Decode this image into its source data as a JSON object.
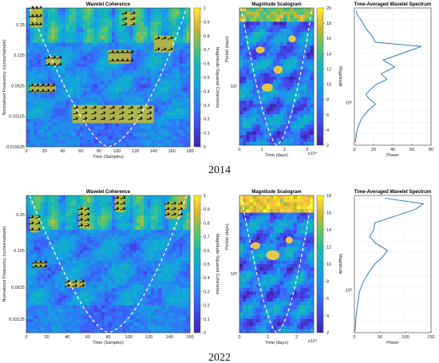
{
  "chart_data": [
    {
      "panel": "top",
      "year_label": "2014",
      "coherence": {
        "type": "heatmap",
        "title": "Wavelet Coherence",
        "xlabel": "Time (Samples)",
        "ylabel": "Normalized Frequency  (cycles/sample)",
        "xticks": [
          "0",
          "20",
          "40",
          "60",
          "80",
          "100",
          "120",
          "140",
          "160",
          "180"
        ],
        "yticks": [
          "0.25",
          "0.125",
          "0.0625",
          "0.03125",
          "0.015625"
        ],
        "colorbar_label": "Magnitude-Squared Coherence",
        "colorbar_ticks": [
          "0",
          "0.1",
          "0.2",
          "0.3",
          "0.4",
          "0.5",
          "0.6",
          "0.7",
          "0.8",
          "0.9",
          "1"
        ]
      },
      "scalogram": {
        "type": "heatmap",
        "title": "Magnitude Scalogram",
        "xlabel": "Time (days)",
        "ylabel": "Period (days)",
        "xticks": [
          "0",
          "1",
          "2",
          "3"
        ],
        "x_exponent": "x10⁴",
        "ytick": "10³",
        "colorbar_label": "Magnitude",
        "colorbar_ticks": [
          "2",
          "4",
          "6",
          "8",
          "10",
          "12",
          "14",
          "16",
          "18",
          "20"
        ]
      },
      "spectrum": {
        "type": "line",
        "title": "Time-Averaged Wavelet Spectrum",
        "xlabel": "Power",
        "xticks": [
          "0",
          "20",
          "40",
          "60",
          "80"
        ],
        "ytick": "10³",
        "xlim": [
          0,
          80
        ],
        "series": [
          {
            "power": [
              2,
              3,
              8,
              12,
              18,
              22,
              70,
              50,
              30,
              42,
              28,
              34,
              22,
              16,
              12,
              15,
              22,
              14,
              8,
              4,
              2,
              1
            ],
            "pos": [
              0.02,
              0.05,
              0.1,
              0.15,
              0.2,
              0.25,
              0.28,
              0.33,
              0.38,
              0.43,
              0.48,
              0.52,
              0.56,
              0.6,
              0.63,
              0.66,
              0.7,
              0.75,
              0.8,
              0.86,
              0.92,
              0.98
            ]
          }
        ]
      }
    },
    {
      "panel": "bottom",
      "year_label": "2022",
      "coherence": {
        "type": "heatmap",
        "title": "Wavelet Coherence",
        "xlabel": "Time (Samples)",
        "ylabel": "Normalized Frequency  (cycles/sample)",
        "xticks": [
          "0",
          "20",
          "40",
          "60",
          "80",
          "100",
          "120",
          "140",
          "160"
        ],
        "yticks": [
          "0.25",
          "0.125",
          "0.0625",
          "0.03125"
        ],
        "colorbar_label": "Magnitude-Squared Coherence",
        "colorbar_ticks": [
          "0",
          "0.1",
          "0.2",
          "0.3",
          "0.4",
          "0.5",
          "0.6",
          "0.7",
          "0.8",
          "0.9",
          "1"
        ]
      },
      "scalogram": {
        "type": "heatmap",
        "title": "Magnitude Scalogram",
        "xlabel": "Time (days)",
        "ylabel": "Period (days)",
        "xticks": [
          "0",
          "1",
          "2"
        ],
        "x_exponent": "x10⁴",
        "ytick": "10³",
        "colorbar_label": "Magnitude",
        "colorbar_ticks": [
          "2",
          "4",
          "6",
          "8",
          "10",
          "12",
          "14",
          "16",
          "18"
        ]
      },
      "spectrum": {
        "type": "line",
        "title": "Time-Averaged Wavelet Spectrum",
        "xlabel": "Power",
        "xticks": [
          "0",
          "50",
          "100",
          "150"
        ],
        "ytick": "10³",
        "xlim": [
          0,
          150
        ],
        "series": [
          {
            "power": [
              60,
              135,
              120,
              80,
              40,
              38,
              30,
              42,
              65,
              55,
              40,
              30,
              22,
              15,
              10,
              8,
              6,
              4,
              3,
              2,
              1
            ],
            "pos": [
              0.02,
              0.06,
              0.1,
              0.15,
              0.2,
              0.25,
              0.3,
              0.35,
              0.4,
              0.45,
              0.5,
              0.55,
              0.6,
              0.65,
              0.7,
              0.75,
              0.8,
              0.85,
              0.9,
              0.95,
              0.99
            ]
          }
        ]
      }
    }
  ]
}
